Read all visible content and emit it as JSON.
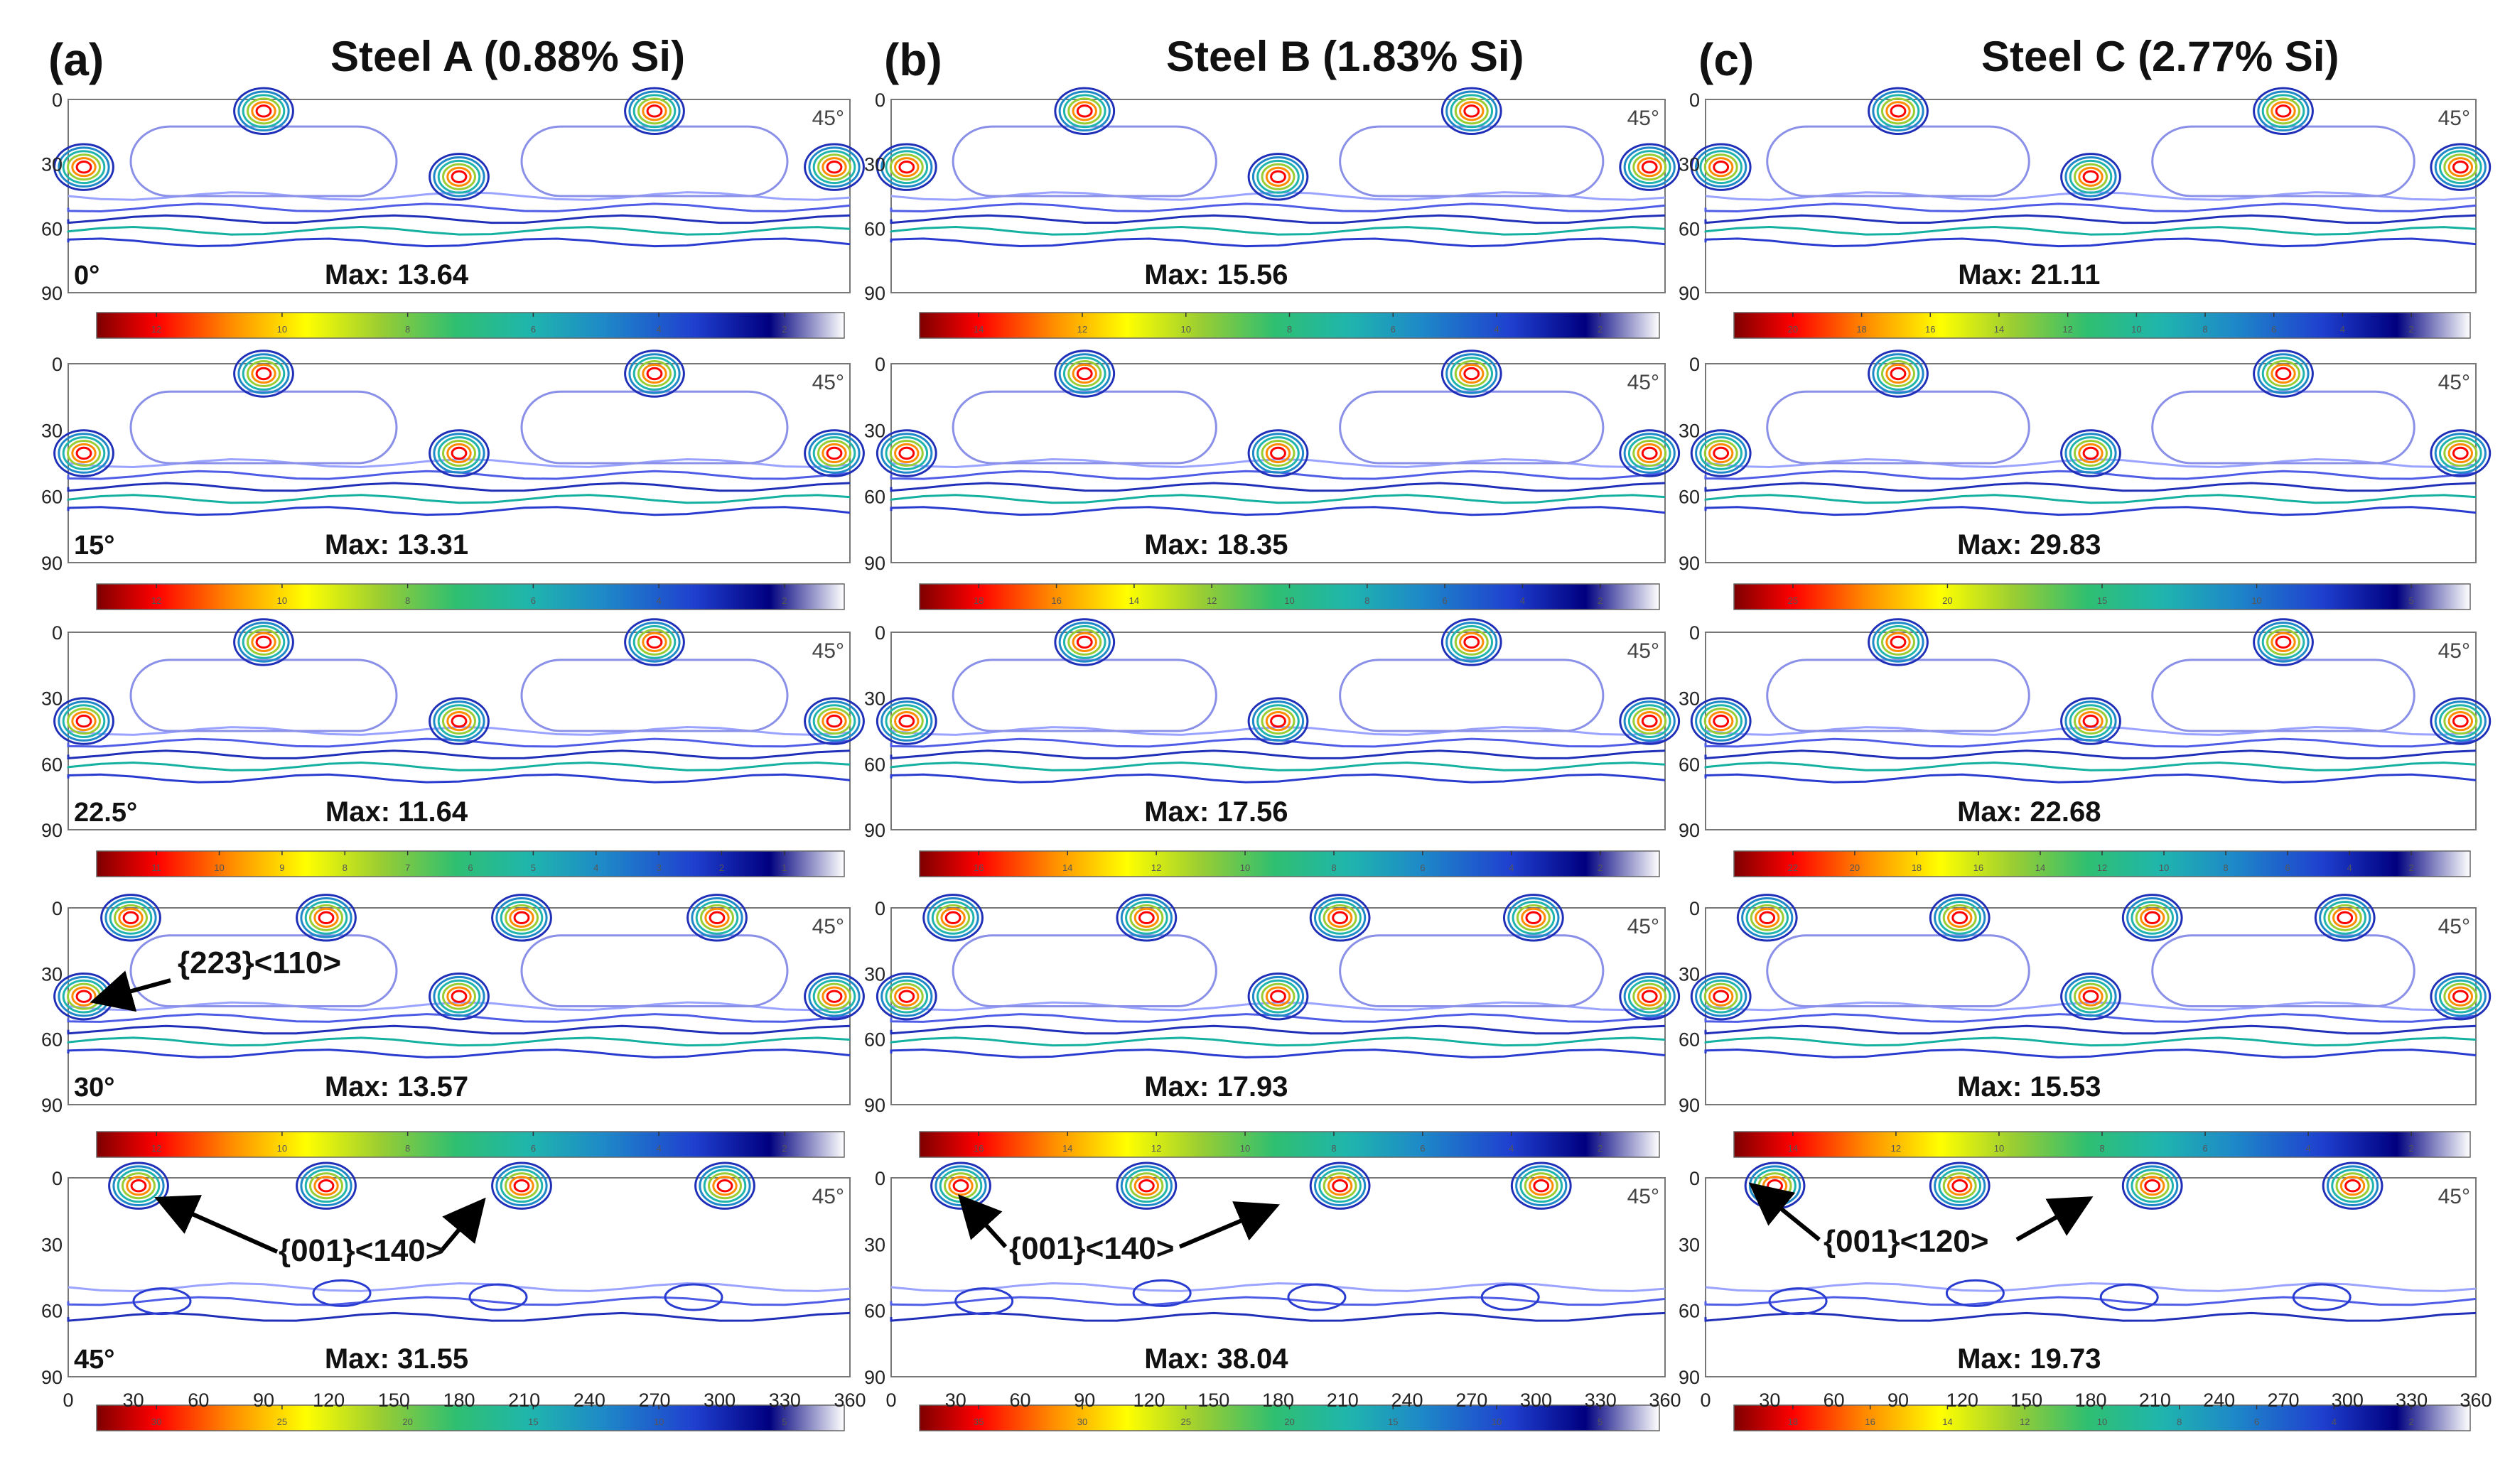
{
  "figure": {
    "columns": [
      {
        "tag": "(a)",
        "title": "Steel A (0.88% Si)"
      },
      {
        "tag": "(b)",
        "title": "Steel B (1.83% Si)"
      },
      {
        "tag": "(c)",
        "title": "Steel C (2.77% Si)"
      }
    ],
    "panels": [
      {
        "col": 0,
        "row": 0,
        "angle": "0°",
        "max": "Max: 13.64",
        "colorbar_ticks": [
          "12",
          "10",
          "8",
          "6",
          "4",
          "2"
        ]
      },
      {
        "col": 1,
        "row": 0,
        "angle": "",
        "max": "Max: 15.56",
        "colorbar_ticks": [
          "14",
          "12",
          "10",
          "8",
          "6",
          "4",
          "2"
        ]
      },
      {
        "col": 2,
        "row": 0,
        "angle": "",
        "max": "Max: 21.11",
        "colorbar_ticks": [
          "20",
          "18",
          "16",
          "14",
          "12",
          "10",
          "8",
          "6",
          "4",
          "2"
        ]
      },
      {
        "col": 0,
        "row": 1,
        "angle": "15°",
        "max": "Max: 13.31",
        "colorbar_ticks": [
          "12",
          "10",
          "8",
          "6",
          "4",
          "2"
        ]
      },
      {
        "col": 1,
        "row": 1,
        "angle": "",
        "max": "Max: 18.35",
        "colorbar_ticks": [
          "18",
          "16",
          "14",
          "12",
          "10",
          "8",
          "6",
          "4",
          "2"
        ]
      },
      {
        "col": 2,
        "row": 1,
        "angle": "",
        "max": "Max: 29.83",
        "colorbar_ticks": [
          "25",
          "20",
          "15",
          "10",
          "5"
        ]
      },
      {
        "col": 0,
        "row": 2,
        "angle": "22.5°",
        "max": "Max: 11.64",
        "colorbar_ticks": [
          "11",
          "10",
          "9",
          "8",
          "7",
          "6",
          "5",
          "4",
          "3",
          "2",
          "1"
        ]
      },
      {
        "col": 1,
        "row": 2,
        "angle": "",
        "max": "Max: 17.56",
        "colorbar_ticks": [
          "16",
          "14",
          "12",
          "10",
          "8",
          "6",
          "4",
          "2"
        ]
      },
      {
        "col": 2,
        "row": 2,
        "angle": "",
        "max": "Max: 22.68",
        "colorbar_ticks": [
          "22",
          "20",
          "18",
          "16",
          "14",
          "12",
          "10",
          "8",
          "6",
          "4",
          "2"
        ]
      },
      {
        "col": 0,
        "row": 3,
        "angle": "30°",
        "max": "Max: 13.57",
        "colorbar_ticks": [
          "12",
          "10",
          "8",
          "6",
          "4",
          "2"
        ]
      },
      {
        "col": 1,
        "row": 3,
        "angle": "",
        "max": "Max: 17.93",
        "colorbar_ticks": [
          "16",
          "14",
          "12",
          "10",
          "8",
          "6",
          "4",
          "2"
        ]
      },
      {
        "col": 2,
        "row": 3,
        "angle": "",
        "max": "Max: 15.53",
        "colorbar_ticks": [
          "14",
          "12",
          "10",
          "8",
          "6",
          "4",
          "2"
        ]
      },
      {
        "col": 0,
        "row": 4,
        "angle": "45°",
        "max": "Max: 31.55",
        "colorbar_ticks": [
          "30",
          "25",
          "20",
          "15",
          "10",
          "5"
        ]
      },
      {
        "col": 1,
        "row": 4,
        "angle": "",
        "max": "Max: 38.04",
        "colorbar_ticks": [
          "35",
          "30",
          "25",
          "20",
          "15",
          "10",
          "5"
        ]
      },
      {
        "col": 2,
        "row": 4,
        "angle": "",
        "max": "Max: 19.73",
        "colorbar_ticks": [
          "18",
          "16",
          "14",
          "12",
          "10",
          "8",
          "6",
          "4",
          "2"
        ]
      }
    ],
    "corner_label": "45°",
    "y_ticks": [
      "0",
      "30",
      "60",
      "90"
    ],
    "x_ticks": [
      "0",
      "30",
      "60",
      "90",
      "120",
      "150",
      "180",
      "210",
      "240",
      "270",
      "300",
      "330",
      "360"
    ],
    "annotations": {
      "a30": "{223}<110>",
      "a45": "{001}<140>",
      "b45": "{001}<140>",
      "c45": "{001}<120>"
    },
    "colormap": [
      "#7f0000",
      "#ff0000",
      "#ff8c00",
      "#ffff00",
      "#9acd32",
      "#2fbf71",
      "#1fb5ad",
      "#1e88c8",
      "#1f3fcf",
      "#00007f",
      "#ffffff"
    ]
  }
}
